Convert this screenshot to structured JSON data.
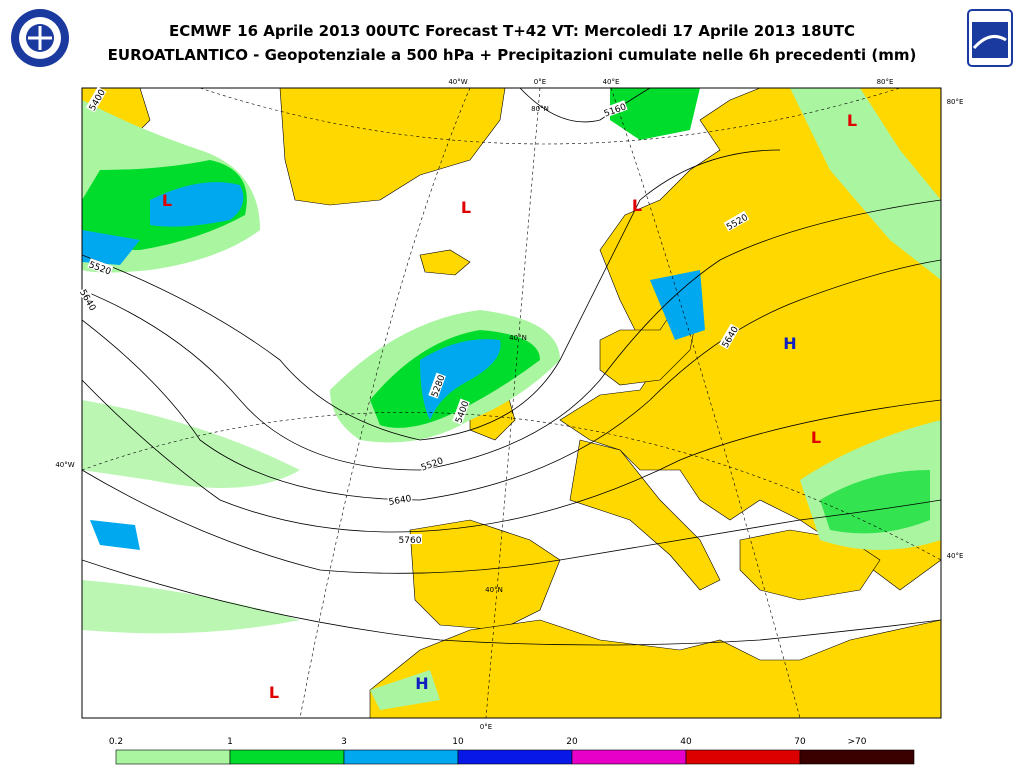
{
  "header": {
    "title": "ECMWF 16 Aprile 2013 00UTC Forecast T+42 VT: Mercoledi 17 Aprile 2013 18UTC",
    "subtitle": "EUROATLANTICO - Geopotenziale a 500 hPa + Precipitazioni cumulate nelle 6h precedenti (mm)"
  },
  "map": {
    "graticule_labels": [
      "40°W",
      "0°E",
      "40°E",
      "80°E",
      "80°E",
      "40°E",
      "40°W",
      "80°N",
      "40°N",
      "40°N",
      "0°E"
    ],
    "contour_labels": [
      "5400",
      "5520",
      "5640",
      "5160",
      "5520",
      "5640",
      "5280",
      "5400",
      "5520",
      "5640",
      "5760"
    ],
    "pressure_centers": [
      {
        "label": "L",
        "color": "#e00000"
      },
      {
        "label": "L",
        "color": "#e00000"
      },
      {
        "label": "L",
        "color": "#e00000"
      },
      {
        "label": "L",
        "color": "#e00000"
      },
      {
        "label": "H",
        "color": "#1020c0"
      },
      {
        "label": "L",
        "color": "#e00000"
      },
      {
        "label": "H",
        "color": "#1020c0"
      },
      {
        "label": "L",
        "color": "#e00000"
      }
    ]
  },
  "legend": {
    "labels": [
      "0.2",
      "1",
      "3",
      "10",
      "20",
      "40",
      "70",
      ">70"
    ],
    "colors": [
      "#aaf5a0",
      "#00dc2c",
      "#00a8f0",
      "#0818e6",
      "#e600c8",
      "#dc0000",
      "#3a0000"
    ]
  }
}
